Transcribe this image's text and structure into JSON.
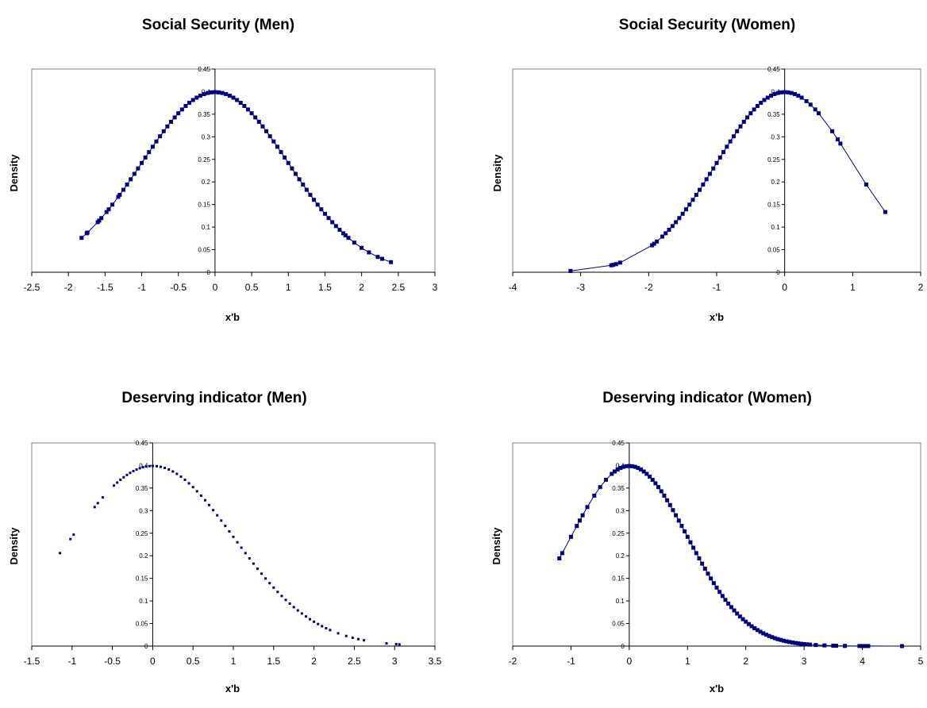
{
  "colors": {
    "series": "#000080",
    "frame": "#808080",
    "axis": "#000000"
  },
  "charts": [
    {
      "title": "Social Security (Men)",
      "xlabel": "x'b",
      "ylabel": "Density",
      "chart_data": {
        "type": "line",
        "markers": true,
        "title": "Social Security (Men)",
        "xlabel": "x'b",
        "ylabel": "Density",
        "xlim": [
          -2.5,
          3
        ],
        "ylim": [
          0,
          0.45
        ],
        "xticks": [
          "-2.5",
          "-2",
          "-1.5",
          "-1",
          "-0.5",
          "0",
          "0.5",
          "1",
          "1.5",
          "2",
          "2.5",
          "3"
        ],
        "yticks": [
          "0",
          "0.05",
          "0.1",
          "0.15",
          "0.2",
          "0.25",
          "0.3",
          "0.35",
          "0.4",
          "0.45"
        ],
        "grid": false,
        "legend": "none",
        "x": [
          -1.82,
          -1.75,
          -1.74,
          -1.6,
          -1.58,
          -1.55,
          -1.48,
          -1.45,
          -1.4,
          -1.32,
          -1.3,
          -1.25,
          -1.2,
          -1.15,
          -1.1,
          -1.05,
          -1.0,
          -0.95,
          -0.9,
          -0.85,
          -0.8,
          -0.75,
          -0.7,
          -0.65,
          -0.6,
          -0.55,
          -0.5,
          -0.45,
          -0.4,
          -0.35,
          -0.3,
          -0.25,
          -0.2,
          -0.15,
          -0.1,
          -0.05,
          0.0,
          0.05,
          0.1,
          0.15,
          0.2,
          0.25,
          0.3,
          0.35,
          0.4,
          0.45,
          0.5,
          0.55,
          0.6,
          0.65,
          0.7,
          0.75,
          0.8,
          0.85,
          0.9,
          0.95,
          1.0,
          1.05,
          1.1,
          1.15,
          1.2,
          1.25,
          1.3,
          1.35,
          1.4,
          1.45,
          1.5,
          1.55,
          1.6,
          1.65,
          1.7,
          1.75,
          1.78,
          1.82,
          1.9,
          2.0,
          2.1,
          2.22,
          2.28,
          2.4
        ],
        "y": [
          0.0761,
          0.0863,
          0.0878,
          0.1109,
          0.1145,
          0.12,
          0.1334,
          0.1394,
          0.1497,
          0.1669,
          0.1714,
          0.1826,
          0.1942,
          0.2059,
          0.2179,
          0.2299,
          0.242,
          0.2541,
          0.2661,
          0.278,
          0.2897,
          0.3011,
          0.3123,
          0.323,
          0.3332,
          0.3429,
          0.3521,
          0.3605,
          0.3683,
          0.3752,
          0.3814,
          0.3867,
          0.391,
          0.3945,
          0.397,
          0.3984,
          0.3989,
          0.3984,
          0.397,
          0.3945,
          0.391,
          0.3867,
          0.3814,
          0.3752,
          0.3683,
          0.3605,
          0.3521,
          0.3429,
          0.3332,
          0.323,
          0.3123,
          0.3011,
          0.2897,
          0.278,
          0.2661,
          0.2541,
          0.242,
          0.2299,
          0.2179,
          0.2059,
          0.1942,
          0.1826,
          0.1714,
          0.1604,
          0.1497,
          0.1394,
          0.1295,
          0.12,
          0.1109,
          0.1023,
          0.094,
          0.0863,
          0.0818,
          0.0761,
          0.0656,
          0.054,
          0.044,
          0.0339,
          0.0297,
          0.0224
        ]
      }
    },
    {
      "title": "Social Security (Women)",
      "xlabel": "x'b",
      "ylabel": "Density",
      "chart_data": {
        "type": "line",
        "markers": true,
        "title": "Social Security (Women)",
        "xlabel": "x'b",
        "ylabel": "Density",
        "xlim": [
          -4,
          2
        ],
        "ylim": [
          0,
          0.45
        ],
        "xticks": [
          "-4",
          "-3",
          "-2",
          "-1",
          "0",
          "1",
          "2"
        ],
        "yticks": [
          "0",
          "0.05",
          "0.1",
          "0.15",
          "0.2",
          "0.25",
          "0.3",
          "0.35",
          "0.4",
          "0.45"
        ],
        "grid": false,
        "legend": "none",
        "x": [
          -3.15,
          -2.55,
          -2.52,
          -2.48,
          -2.42,
          -1.95,
          -1.92,
          -1.88,
          -1.8,
          -1.75,
          -1.7,
          -1.65,
          -1.6,
          -1.55,
          -1.5,
          -1.45,
          -1.4,
          -1.35,
          -1.3,
          -1.25,
          -1.2,
          -1.15,
          -1.1,
          -1.05,
          -1.0,
          -0.95,
          -0.9,
          -0.85,
          -0.8,
          -0.75,
          -0.7,
          -0.65,
          -0.6,
          -0.55,
          -0.5,
          -0.45,
          -0.4,
          -0.35,
          -0.3,
          -0.25,
          -0.2,
          -0.15,
          -0.1,
          -0.05,
          0.0,
          0.05,
          0.1,
          0.15,
          0.2,
          0.25,
          0.32,
          0.38,
          0.45,
          0.5,
          0.7,
          0.78,
          0.82,
          1.2,
          1.48
        ],
        "y": [
          0.0028,
          0.0154,
          0.0163,
          0.018,
          0.0213,
          0.0596,
          0.0632,
          0.0681,
          0.079,
          0.0863,
          0.094,
          0.1023,
          0.1109,
          0.12,
          0.1295,
          0.1394,
          0.1497,
          0.1604,
          0.1714,
          0.1826,
          0.1942,
          0.2059,
          0.2179,
          0.2299,
          0.242,
          0.2541,
          0.2661,
          0.278,
          0.2897,
          0.3011,
          0.3123,
          0.323,
          0.3332,
          0.3429,
          0.3521,
          0.3605,
          0.3683,
          0.3752,
          0.3814,
          0.3867,
          0.391,
          0.3945,
          0.397,
          0.3984,
          0.3989,
          0.3984,
          0.397,
          0.3945,
          0.391,
          0.3867,
          0.379,
          0.3712,
          0.3605,
          0.3521,
          0.3123,
          0.2943,
          0.285,
          0.1942,
          0.1334
        ]
      }
    },
    {
      "title": "Deserving indicator (Men)",
      "xlabel": "x'b",
      "ylabel": "Density",
      "chart_data": {
        "type": "scatter",
        "title": "Deserving indicator (Men)",
        "xlabel": "x'b",
        "ylabel": "Density",
        "xlim": [
          -1.5,
          3.5
        ],
        "ylim": [
          0,
          0.45
        ],
        "xticks": [
          "-1.5",
          "-1",
          "-0.5",
          "0",
          "0.5",
          "1",
          "1.5",
          "2",
          "2.5",
          "3",
          "3.5"
        ],
        "yticks": [
          "0",
          "0.05",
          "0.1",
          "0.15",
          "0.2",
          "0.25",
          "0.3",
          "0.35",
          "0.4",
          "0.45"
        ],
        "grid": false,
        "legend": "none",
        "x": [
          -1.15,
          -1.02,
          -0.98,
          -0.72,
          -0.68,
          -0.62,
          -0.48,
          -0.44,
          -0.4,
          -0.36,
          -0.32,
          -0.28,
          -0.24,
          -0.2,
          -0.16,
          -0.12,
          -0.08,
          -0.04,
          0.0,
          0.05,
          0.1,
          0.15,
          0.2,
          0.25,
          0.3,
          0.35,
          0.4,
          0.45,
          0.5,
          0.55,
          0.6,
          0.65,
          0.7,
          0.75,
          0.8,
          0.85,
          0.9,
          0.95,
          1.0,
          1.05,
          1.1,
          1.15,
          1.2,
          1.25,
          1.3,
          1.35,
          1.4,
          1.45,
          1.5,
          1.55,
          1.6,
          1.65,
          1.7,
          1.75,
          1.8,
          1.85,
          1.9,
          1.95,
          2.0,
          2.05,
          2.1,
          2.15,
          2.2,
          2.3,
          2.4,
          2.48,
          2.55,
          2.62,
          2.9,
          3.02,
          3.06
        ],
        "y": [
          0.2059,
          0.2371,
          0.2468,
          0.3079,
          0.3166,
          0.3292,
          0.3555,
          0.3621,
          0.3683,
          0.3739,
          0.379,
          0.3836,
          0.3876,
          0.391,
          0.3939,
          0.3961,
          0.3977,
          0.3986,
          0.3989,
          0.3984,
          0.397,
          0.3945,
          0.391,
          0.3867,
          0.3814,
          0.3752,
          0.3683,
          0.3605,
          0.3521,
          0.3429,
          0.3332,
          0.323,
          0.3123,
          0.3011,
          0.2897,
          0.278,
          0.2661,
          0.2541,
          0.242,
          0.2299,
          0.2179,
          0.2059,
          0.1942,
          0.1826,
          0.1714,
          0.1604,
          0.1497,
          0.1394,
          0.1295,
          0.12,
          0.1109,
          0.1023,
          0.094,
          0.0863,
          0.079,
          0.0721,
          0.0656,
          0.0596,
          0.054,
          0.0488,
          0.044,
          0.0396,
          0.0355,
          0.0283,
          0.0224,
          0.0184,
          0.0154,
          0.0129,
          0.006,
          0.0042,
          0.0037
        ]
      }
    },
    {
      "title": "Deserving indicator (Women)",
      "xlabel": "x'b",
      "ylabel": "Density",
      "chart_data": {
        "type": "line",
        "markers": true,
        "title": "Deserving indicator (Women)",
        "xlabel": "x'b",
        "ylabel": "Density",
        "xlim": [
          -2,
          5
        ],
        "ylim": [
          0,
          0.45
        ],
        "xticks": [
          "-2",
          "-1",
          "0",
          "1",
          "2",
          "3",
          "4",
          "5"
        ],
        "yticks": [
          "0",
          "0.05",
          "0.1",
          "0.15",
          "0.2",
          "0.25",
          "0.3",
          "0.35",
          "0.4",
          "0.45"
        ],
        "grid": false,
        "legend": "none",
        "x": [
          -1.2,
          -1.15,
          -1.0,
          -0.9,
          -0.85,
          -0.8,
          -0.72,
          -0.6,
          -0.5,
          -0.4,
          -0.3,
          -0.25,
          -0.2,
          -0.15,
          -0.1,
          -0.05,
          0.0,
          0.05,
          0.1,
          0.15,
          0.2,
          0.25,
          0.3,
          0.35,
          0.4,
          0.45,
          0.5,
          0.55,
          0.6,
          0.65,
          0.7,
          0.75,
          0.8,
          0.85,
          0.9,
          0.95,
          1.0,
          1.05,
          1.1,
          1.15,
          1.2,
          1.25,
          1.3,
          1.35,
          1.4,
          1.45,
          1.5,
          1.55,
          1.6,
          1.65,
          1.7,
          1.75,
          1.8,
          1.85,
          1.9,
          1.95,
          2.0,
          2.05,
          2.1,
          2.15,
          2.2,
          2.25,
          2.3,
          2.35,
          2.4,
          2.45,
          2.5,
          2.55,
          2.6,
          2.65,
          2.7,
          2.75,
          2.8,
          2.85,
          2.9,
          2.95,
          3.0,
          3.05,
          3.1,
          3.2,
          3.35,
          3.5,
          3.55,
          3.7,
          3.95,
          4.0,
          4.05,
          4.1,
          4.68
        ],
        "y": [
          0.1942,
          0.2059,
          0.242,
          0.2661,
          0.278,
          0.2897,
          0.3079,
          0.3332,
          0.3521,
          0.3683,
          0.3814,
          0.3867,
          0.391,
          0.3945,
          0.397,
          0.3984,
          0.3989,
          0.3984,
          0.397,
          0.3945,
          0.391,
          0.3867,
          0.3814,
          0.3752,
          0.3683,
          0.3605,
          0.3521,
          0.3429,
          0.3332,
          0.323,
          0.3123,
          0.3011,
          0.2897,
          0.278,
          0.2661,
          0.2541,
          0.242,
          0.2299,
          0.2179,
          0.2059,
          0.1942,
          0.1826,
          0.1714,
          0.1604,
          0.1497,
          0.1394,
          0.1295,
          0.12,
          0.1109,
          0.1023,
          0.094,
          0.0863,
          0.079,
          0.0721,
          0.0656,
          0.0596,
          0.054,
          0.0488,
          0.044,
          0.0396,
          0.0355,
          0.0317,
          0.0283,
          0.0252,
          0.0224,
          0.0198,
          0.0175,
          0.0154,
          0.0136,
          0.0119,
          0.0104,
          0.0091,
          0.0079,
          0.0069,
          0.006,
          0.0051,
          0.0044,
          0.0038,
          0.0033,
          0.0024,
          0.0015,
          0.0009,
          0.0007,
          0.0004,
          0.0002,
          0.0001,
          0.0001,
          0.0001,
          0.0
        ]
      }
    }
  ]
}
